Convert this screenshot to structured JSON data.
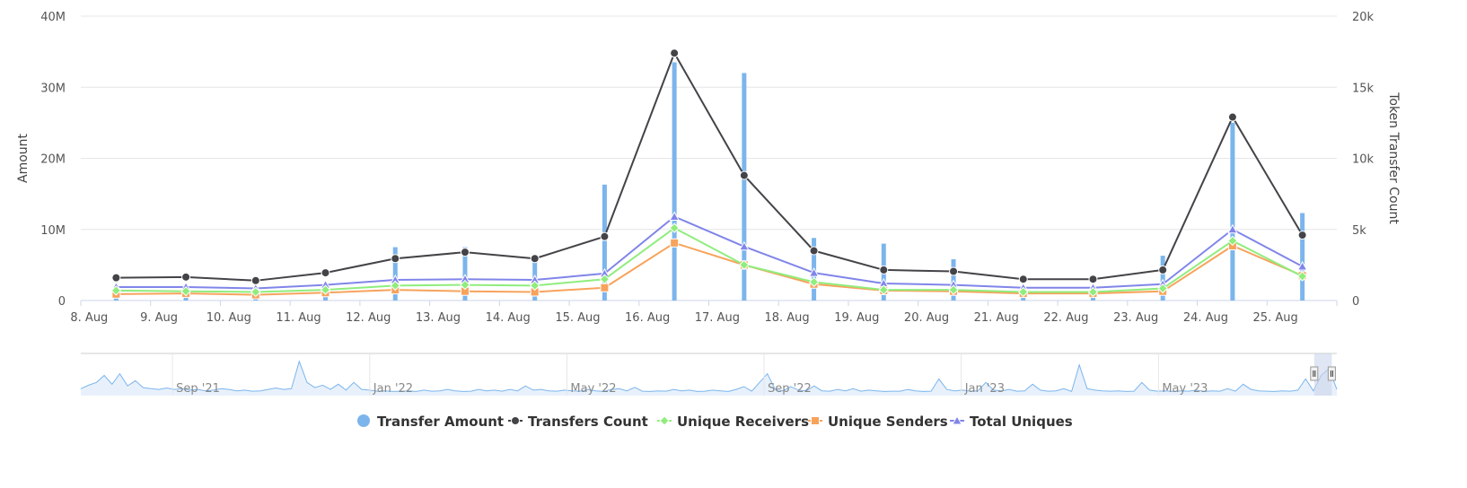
{
  "chart_data": {
    "type": "bar+line",
    "categories": [
      "8. Aug",
      "9. Aug",
      "10. Aug",
      "11. Aug",
      "12. Aug",
      "13. Aug",
      "14. Aug",
      "15. Aug",
      "16. Aug",
      "17. Aug",
      "18. Aug",
      "19. Aug",
      "20. Aug",
      "21. Aug",
      "22. Aug",
      "23. Aug",
      "24. Aug",
      "25. Aug"
    ],
    "y_left": {
      "label": "Amount",
      "range": [
        0,
        40000000
      ],
      "ticks": [
        0,
        10000000,
        20000000,
        30000000,
        40000000
      ],
      "tick_labels": [
        "0",
        "10M",
        "20M",
        "30M",
        "40M"
      ]
    },
    "y_right": {
      "label": "Token Transfer Count",
      "range": [
        0,
        20000
      ],
      "ticks": [
        0,
        5000,
        10000,
        15000,
        20000
      ],
      "tick_labels": [
        "0",
        "5k",
        "10k",
        "15k",
        "20k"
      ]
    },
    "grid": true,
    "legend_position": "bottom-center",
    "series": [
      {
        "name": "Transfer Amount",
        "kind": "bar",
        "axis": "left",
        "color": "#7cb5ec",
        "marker": "circle",
        "values": [
          500000,
          600000,
          300000,
          800000,
          7500000,
          7500000,
          6000000,
          16300000,
          33500000,
          32000000,
          8800000,
          8000000,
          5800000,
          1800000,
          1500000,
          6300000,
          25000000,
          12300000
        ]
      },
      {
        "name": "Transfers Count",
        "kind": "line",
        "axis": "right",
        "color": "#434348",
        "marker": "circle",
        "values": [
          1600,
          1650,
          1400,
          1950,
          2950,
          3400,
          2950,
          4500,
          17400,
          8800,
          3500,
          2150,
          2050,
          1500,
          1500,
          2150,
          12900,
          4600
        ]
      },
      {
        "name": "Unique Receivers",
        "kind": "line",
        "axis": "right",
        "color": "#90ed7d",
        "marker": "diamond",
        "values": [
          700,
          650,
          600,
          750,
          1050,
          1100,
          1050,
          1500,
          5100,
          2500,
          1300,
          750,
          750,
          600,
          600,
          850,
          4200,
          1700
        ]
      },
      {
        "name": "Unique Senders",
        "kind": "line",
        "axis": "right",
        "color": "#f7a35c",
        "marker": "square",
        "values": [
          450,
          500,
          400,
          550,
          750,
          650,
          600,
          900,
          4050,
          2500,
          1150,
          700,
          650,
          500,
          500,
          650,
          3850,
          1750
        ]
      },
      {
        "name": "Total Uniques",
        "kind": "line",
        "axis": "right",
        "color": "#8085e9",
        "marker": "triangle",
        "values": [
          950,
          950,
          850,
          1100,
          1450,
          1500,
          1450,
          1900,
          5900,
          3800,
          1950,
          1200,
          1100,
          900,
          900,
          1150,
          5000,
          2400
        ]
      }
    ],
    "navigator": {
      "labels": [
        "Sep '21",
        "Jan '22",
        "May '22",
        "Sep '22",
        "Jan '23",
        "May '23"
      ],
      "line_color": "#7cb5ec",
      "selection_color": "#ccd6eb",
      "selected_range": [
        0.982,
        0.996
      ],
      "profile": [
        0.12,
        0.22,
        0.3,
        0.5,
        0.25,
        0.55,
        0.2,
        0.35,
        0.15,
        0.12,
        0.1,
        0.14,
        0.1,
        0.12,
        0.08,
        0.1,
        0.06,
        0.08,
        0.12,
        0.1,
        0.06,
        0.08,
        0.05,
        0.06,
        0.1,
        0.14,
        0.1,
        0.12,
        0.9,
        0.3,
        0.15,
        0.22,
        0.1,
        0.25,
        0.08,
        0.3,
        0.1,
        0.08,
        0.05,
        0.06,
        0.04,
        0.05,
        0.06,
        0.04,
        0.08,
        0.05,
        0.06,
        0.1,
        0.06,
        0.04,
        0.05,
        0.1,
        0.06,
        0.08,
        0.05,
        0.1,
        0.06,
        0.2,
        0.08,
        0.1,
        0.06,
        0.05,
        0.08,
        0.06,
        0.05,
        0.1,
        0.06,
        0.04,
        0.1,
        0.12,
        0.06,
        0.16,
        0.05,
        0.04,
        0.06,
        0.05,
        0.1,
        0.06,
        0.08,
        0.04,
        0.05,
        0.08,
        0.06,
        0.04,
        0.1,
        0.18,
        0.05,
        0.3,
        0.55,
        0.1,
        0.06,
        0.18,
        0.08,
        0.06,
        0.2,
        0.06,
        0.05,
        0.1,
        0.06,
        0.12,
        0.05,
        0.08,
        0.06,
        0.04,
        0.05,
        0.05,
        0.1,
        0.06,
        0.04,
        0.05,
        0.4,
        0.1,
        0.06,
        0.08,
        0.05,
        0.06,
        0.3,
        0.08,
        0.06,
        0.1,
        0.05,
        0.06,
        0.25,
        0.08,
        0.05,
        0.06,
        0.12,
        0.04,
        0.8,
        0.12,
        0.08,
        0.06,
        0.05,
        0.06,
        0.04,
        0.05,
        0.3,
        0.08,
        0.05,
        0.06,
        0.04,
        0.06,
        0.05,
        0.08,
        0.04,
        0.06,
        0.05,
        0.12,
        0.05,
        0.25,
        0.1,
        0.06,
        0.05,
        0.04,
        0.06,
        0.05,
        0.08,
        0.4,
        0.06,
        0.5,
        0.7,
        0.1
      ]
    }
  }
}
